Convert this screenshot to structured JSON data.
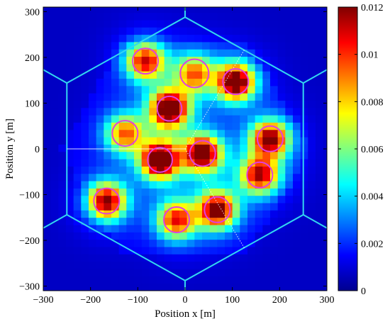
{
  "chart_data": {
    "type": "heatmap",
    "xlabel": "Position x [m]",
    "ylabel": "Position y [m]",
    "xlim": [
      -300,
      300
    ],
    "ylim": [
      -310,
      310
    ],
    "x_ticks": [
      -300,
      -200,
      -100,
      0,
      100,
      200,
      300
    ],
    "y_ticks": [
      -300,
      -200,
      -100,
      0,
      100,
      200,
      300
    ],
    "x_tick_labels": [
      "−300",
      "−200",
      "−100",
      "0",
      "100",
      "200",
      "300"
    ],
    "y_tick_labels": [
      "−300",
      "−200",
      "−100",
      "0",
      "100",
      "200",
      "300"
    ],
    "colorbar": {
      "range": [
        0,
        0.012
      ],
      "ticks": [
        0,
        0.002,
        0.004,
        0.006,
        0.008,
        0.01,
        0.012
      ],
      "tick_labels": [
        "0",
        "0.002",
        "0.004",
        "0.006",
        "0.008",
        "0.01",
        "0.012"
      ],
      "colormap": "jet"
    },
    "cell_size_m": 16,
    "background_value": 0.0008,
    "hotspots": [
      {
        "x": -84,
        "y": 192,
        "peak": 0.0085,
        "radius_m": 27
      },
      {
        "x": 20,
        "y": 165,
        "peak": 0.0065,
        "radius_m": 30
      },
      {
        "x": 107,
        "y": 147,
        "peak": 0.011,
        "radius_m": 27
      },
      {
        "x": -33,
        "y": 88,
        "peak": 0.0115,
        "radius_m": 26
      },
      {
        "x": -127,
        "y": 34,
        "peak": 0.0068,
        "radius_m": 27
      },
      {
        "x": 180,
        "y": 22,
        "peak": 0.0098,
        "radius_m": 27
      },
      {
        "x": -53,
        "y": -24,
        "peak": 0.012,
        "radius_m": 26
      },
      {
        "x": 37,
        "y": -10,
        "peak": 0.0108,
        "radius_m": 27
      },
      {
        "x": 158,
        "y": -57,
        "peak": 0.0088,
        "radius_m": 27
      },
      {
        "x": -166,
        "y": -114,
        "peak": 0.0098,
        "radius_m": 27
      },
      {
        "x": 68,
        "y": -133,
        "peak": 0.01,
        "radius_m": 27
      },
      {
        "x": -18,
        "y": -155,
        "peak": 0.008,
        "radius_m": 27
      }
    ],
    "hexagon_vertices": [
      [
        250,
        144
      ],
      [
        0,
        288
      ],
      [
        -250,
        144
      ],
      [
        -250,
        -144
      ],
      [
        0,
        -288
      ],
      [
        250,
        -144
      ]
    ],
    "hexagon_spokes": [
      [
        [
          0,
          288
        ],
        [
          0,
          310
        ]
      ],
      [
        [
          250,
          144
        ],
        [
          300,
          173
        ]
      ],
      [
        [
          -250,
          144
        ],
        [
          -300,
          173
        ]
      ],
      [
        [
          -250,
          -144
        ],
        [
          -300,
          -173
        ]
      ],
      [
        [
          0,
          -288
        ],
        [
          0,
          -310
        ]
      ],
      [
        [
          250,
          -144
        ],
        [
          300,
          -173
        ]
      ]
    ],
    "dotted_lines": [
      [
        [
          0,
          0
        ],
        [
          125,
          216
        ]
      ],
      [
        [
          0,
          0
        ],
        [
          125,
          -216
        ]
      ]
    ],
    "solid_line": [
      [
        -250,
        0
      ],
      [
        0,
        0
      ]
    ],
    "colors": {
      "hexagon": "#33d6f0",
      "circles": "#e040e0",
      "dotted": "#ffffff",
      "solid": "#ffffff"
    }
  }
}
